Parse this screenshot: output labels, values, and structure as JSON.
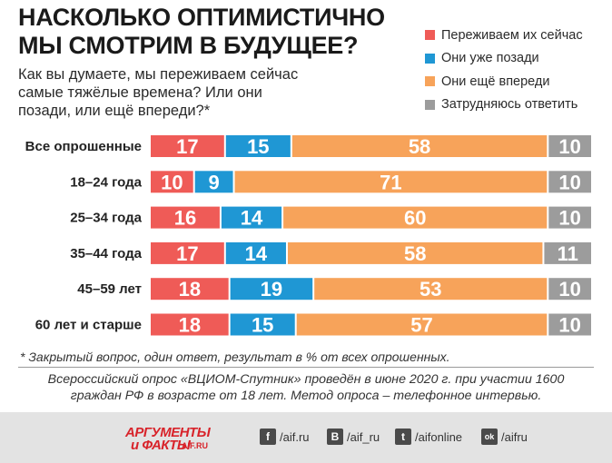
{
  "title_line1": "НАСКОЛЬКО ОПТИМИСТИЧНО",
  "title_line2": "МЫ СМОТРИМ В БУДУЩЕЕ?",
  "question_line1": "Как вы думаете, мы переживаем сейчас",
  "question_line2": "самые тяжёлые времена? Или они",
  "question_line3": "позади, или ещё впереди?*",
  "footnote": "* Закрытый вопрос, один ответ, результат в % от всех опрошенных.",
  "source_line1": "Всероссийский опрос «ВЦИОМ-Спутник» проведён в июне 2020 г. при участии 1600",
  "source_line2": "граждан РФ в возрасте от 18 лет. Метод опроса – телефонное интервью.",
  "footer": {
    "logo_line1": "АРГУМЕНТЫ",
    "logo_line2": "и ФАКТЫ",
    "logo_sub": "AIF.RU",
    "facebook_icon_glyph": "f",
    "facebook_label": "/aif.ru",
    "vk_icon_glyph": "B",
    "vk_label": "/aif_ru",
    "twitter_icon_glyph": "t",
    "twitter_label": "/aifonline",
    "ok_icon_glyph": "ok",
    "ok_label": "/aifru"
  },
  "colors": {
    "now": "#ef5b57",
    "behind": "#1f97d4",
    "ahead": "#f7a35a",
    "unsure": "#9c9c9c"
  },
  "chart_data": {
    "type": "bar",
    "orientation": "horizontal",
    "stacked": true,
    "unit": "%",
    "categories": [
      "Все опрошенные",
      "18–24 года",
      "25–34 года",
      "35–44 года",
      "45–59 лет",
      "60 лет и старше"
    ],
    "series": [
      {
        "name": "Переживаем их сейчас",
        "color": "#ef5b57",
        "values": [
          17,
          10,
          16,
          17,
          18,
          18
        ]
      },
      {
        "name": "Они уже позади",
        "color": "#1f97d4",
        "values": [
          15,
          9,
          14,
          14,
          19,
          15
        ]
      },
      {
        "name": "Они ещё впереди",
        "color": "#f7a35a",
        "values": [
          58,
          71,
          60,
          58,
          53,
          57
        ]
      },
      {
        "name": "Затрудняюсь ответить",
        "color": "#9c9c9c",
        "values": [
          10,
          10,
          10,
          11,
          10,
          10
        ]
      }
    ],
    "legend": "top-right",
    "grid": false
  }
}
